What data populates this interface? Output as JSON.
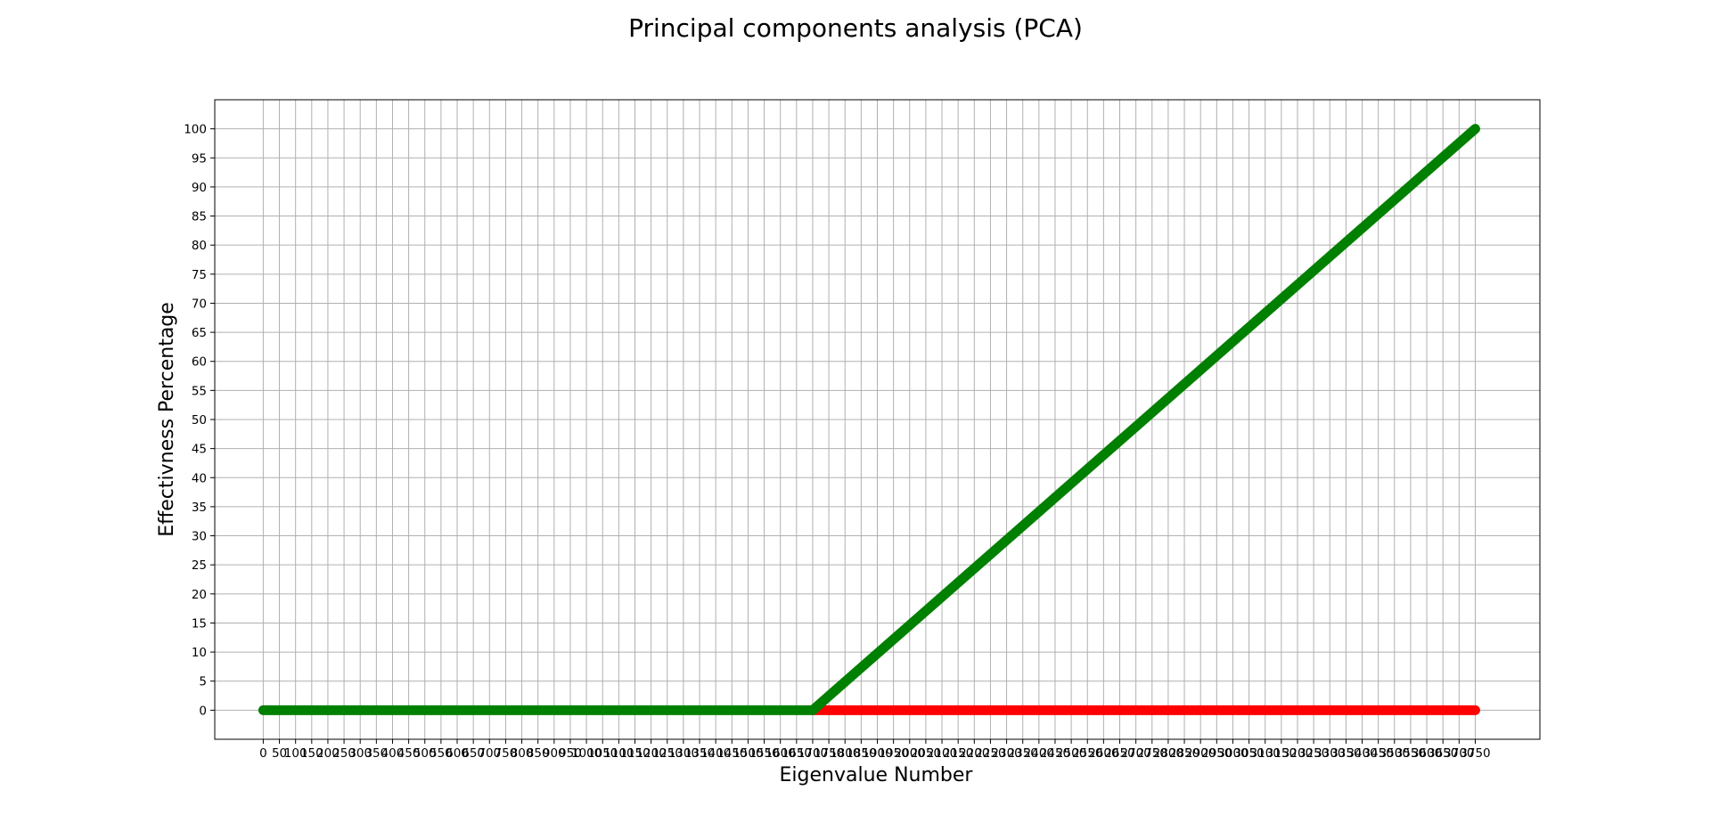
{
  "chart_data": {
    "type": "line",
    "title": "Principal components analysis (PCA)",
    "xlabel": "Eigenvalue Number",
    "ylabel": "Effectivness Percentage",
    "xlim": [
      -150,
      3950
    ],
    "ylim": [
      -5,
      105
    ],
    "x_ticks": [
      0,
      50,
      100,
      150,
      200,
      250,
      300,
      350,
      400,
      450,
      500,
      550,
      600,
      650,
      700,
      750,
      800,
      850,
      900,
      950,
      1000,
      1050,
      1100,
      1150,
      1200,
      1250,
      1300,
      1350,
      1400,
      1450,
      1500,
      1550,
      1600,
      1650,
      1700,
      1750,
      1800,
      1850,
      1900,
      1950,
      2000,
      2050,
      2100,
      2150,
      2200,
      2250,
      2300,
      2350,
      2400,
      2450,
      2500,
      2550,
      2600,
      2650,
      2700,
      2750,
      2800,
      2850,
      2900,
      2950,
      3000,
      3050,
      3100,
      3150,
      3200,
      3250,
      3300,
      3350,
      3400,
      3450,
      3500,
      3550,
      3600,
      3650,
      3700,
      3750
    ],
    "y_ticks": [
      0,
      5,
      10,
      15,
      20,
      25,
      30,
      35,
      40,
      45,
      50,
      55,
      60,
      65,
      70,
      75,
      80,
      85,
      90,
      95,
      100
    ],
    "grid": true,
    "legend": "none",
    "series": [
      {
        "color": "#ff0000",
        "x": [
          1700,
          3750
        ],
        "y": [
          0,
          0
        ]
      },
      {
        "color": "#008000",
        "x": [
          0,
          1700,
          3750
        ],
        "y": [
          0,
          0,
          100
        ]
      }
    ]
  }
}
